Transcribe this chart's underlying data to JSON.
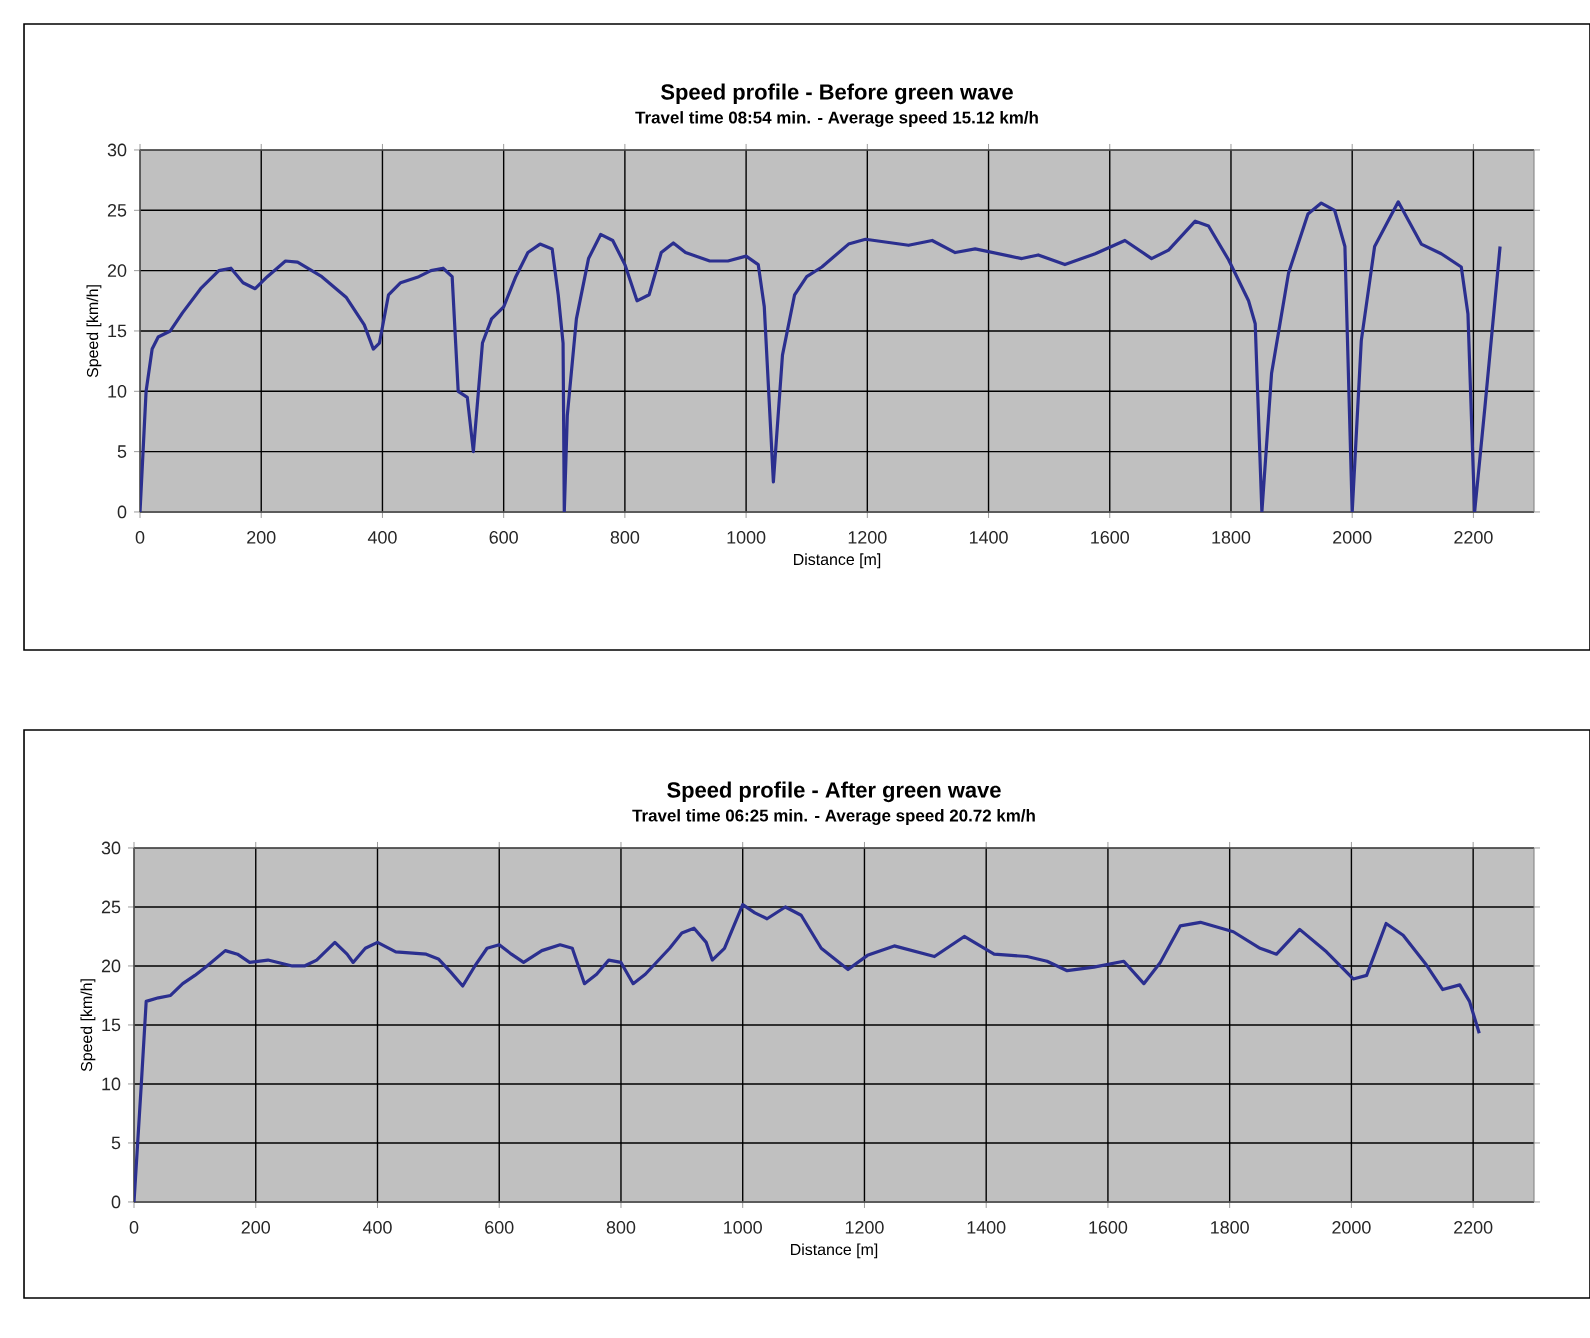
{
  "chart_data": [
    {
      "type": "line",
      "title": "Speed profile - Before green wave",
      "subtitle": "Travel time 08:54 min. - Average speed 15.12 km/h",
      "xlabel": "Distance [m]",
      "ylabel": "Speed [km/h]",
      "color": "#2b2f8f",
      "xlim": [
        0,
        2300
      ],
      "xticks": [
        0,
        200,
        400,
        600,
        800,
        1000,
        1200,
        1400,
        1600,
        1800,
        2000,
        2200
      ],
      "ylim": [
        0,
        30
      ],
      "yticks": [
        0,
        5,
        10,
        15,
        20,
        25,
        30
      ],
      "grid": true,
      "x": [
        0,
        5,
        10,
        20,
        30,
        50,
        70,
        100,
        130,
        150,
        170,
        190,
        210,
        240,
        260,
        300,
        340,
        370,
        385,
        395,
        410,
        430,
        460,
        480,
        500,
        515,
        525,
        540,
        550,
        565,
        580,
        600,
        620,
        640,
        660,
        680,
        690,
        698,
        700,
        705,
        720,
        740,
        760,
        780,
        800,
        820,
        840,
        860,
        880,
        900,
        940,
        970,
        1000,
        1020,
        1030,
        1045,
        1060,
        1080,
        1100,
        1125,
        1169,
        1197,
        1268,
        1307,
        1345,
        1378,
        1455,
        1482,
        1526,
        1576,
        1625,
        1669,
        1697,
        1741,
        1763,
        1796,
        1829,
        1840,
        1851,
        1867,
        1895,
        1927,
        1949,
        1971,
        1988,
        2000,
        2015,
        2037,
        2076,
        2114,
        2147,
        2180,
        2191,
        2202,
        2219,
        2244
      ],
      "values": [
        0,
        5,
        10,
        13.5,
        14.5,
        15,
        16.5,
        18.5,
        20,
        20.2,
        19,
        18.5,
        19.5,
        20.8,
        20.7,
        19.5,
        17.8,
        15.5,
        13.5,
        14,
        18,
        19,
        19.5,
        20,
        20.2,
        19.5,
        10,
        9.5,
        5,
        14,
        16,
        17,
        19.5,
        21.5,
        22.2,
        21.8,
        18,
        14,
        0,
        8,
        16,
        21,
        23,
        22.5,
        20.5,
        17.5,
        18,
        21.5,
        22.3,
        21.5,
        20.8,
        20.8,
        21.2,
        20.5,
        17,
        2.5,
        13,
        18,
        19.5,
        20.3,
        22.2,
        22.6,
        22.1,
        22.5,
        21.5,
        21.8,
        21,
        21.3,
        20.5,
        21.4,
        22.5,
        21,
        21.7,
        24.1,
        23.7,
        20.9,
        17.5,
        15.6,
        0,
        11.5,
        19.8,
        24.7,
        25.6,
        25,
        22,
        0,
        14.2,
        22,
        25.7,
        22.2,
        21.4,
        20.3,
        16.4,
        0,
        8.7,
        22
      ]
    },
    {
      "type": "line",
      "title": "Speed profile - After green wave",
      "subtitle": "Travel time 06:25 min. - Average speed 20.72 km/h",
      "xlabel": "Distance [m]",
      "ylabel": "Speed [km/h]",
      "color": "#2b2f8f",
      "xlim": [
        0,
        2300
      ],
      "xticks": [
        0,
        200,
        400,
        600,
        800,
        1000,
        1200,
        1400,
        1600,
        1800,
        2000,
        2200
      ],
      "ylim": [
        0,
        30
      ],
      "yticks": [
        0,
        5,
        10,
        15,
        20,
        25,
        30
      ],
      "grid": true,
      "x": [
        0,
        12,
        20,
        40,
        60,
        80,
        100,
        120,
        150,
        170,
        190,
        220,
        260,
        280,
        300,
        330,
        350,
        360,
        380,
        400,
        430,
        480,
        500,
        520,
        540,
        560,
        580,
        600,
        620,
        640,
        670,
        700,
        720,
        740,
        760,
        780,
        800,
        820,
        840,
        880,
        900,
        920,
        940,
        950,
        970,
        1000,
        1020,
        1040,
        1070,
        1096,
        1129,
        1173,
        1205,
        1249,
        1315,
        1364,
        1413,
        1467,
        1500,
        1533,
        1577,
        1626,
        1659,
        1686,
        1719,
        1752,
        1806,
        1850,
        1877,
        1915,
        1959,
        2003,
        2025,
        2057,
        2085,
        2123,
        2150,
        2178,
        2194,
        2210
      ],
      "values": [
        0,
        10,
        17,
        17.3,
        17.5,
        18.5,
        19.2,
        20,
        21.3,
        21,
        20.3,
        20.5,
        20,
        20,
        20.5,
        22,
        21,
        20.3,
        21.5,
        22,
        21.2,
        21,
        20.6,
        19.5,
        18.3,
        20,
        21.5,
        21.8,
        21,
        20.3,
        21.3,
        21.8,
        21.5,
        18.5,
        19.3,
        20.5,
        20.3,
        18.5,
        19.3,
        21.5,
        22.8,
        23.2,
        22,
        20.5,
        21.5,
        25.2,
        24.5,
        24,
        25,
        24.3,
        21.5,
        19.7,
        20.9,
        21.7,
        20.8,
        22.5,
        21,
        20.8,
        20.4,
        19.6,
        19.9,
        20.4,
        18.5,
        20.3,
        23.4,
        23.7,
        22.9,
        21.5,
        21,
        23.1,
        21.2,
        18.9,
        19.2,
        23.6,
        22.6,
        20.1,
        18,
        18.4,
        17,
        14.3
      ]
    }
  ]
}
